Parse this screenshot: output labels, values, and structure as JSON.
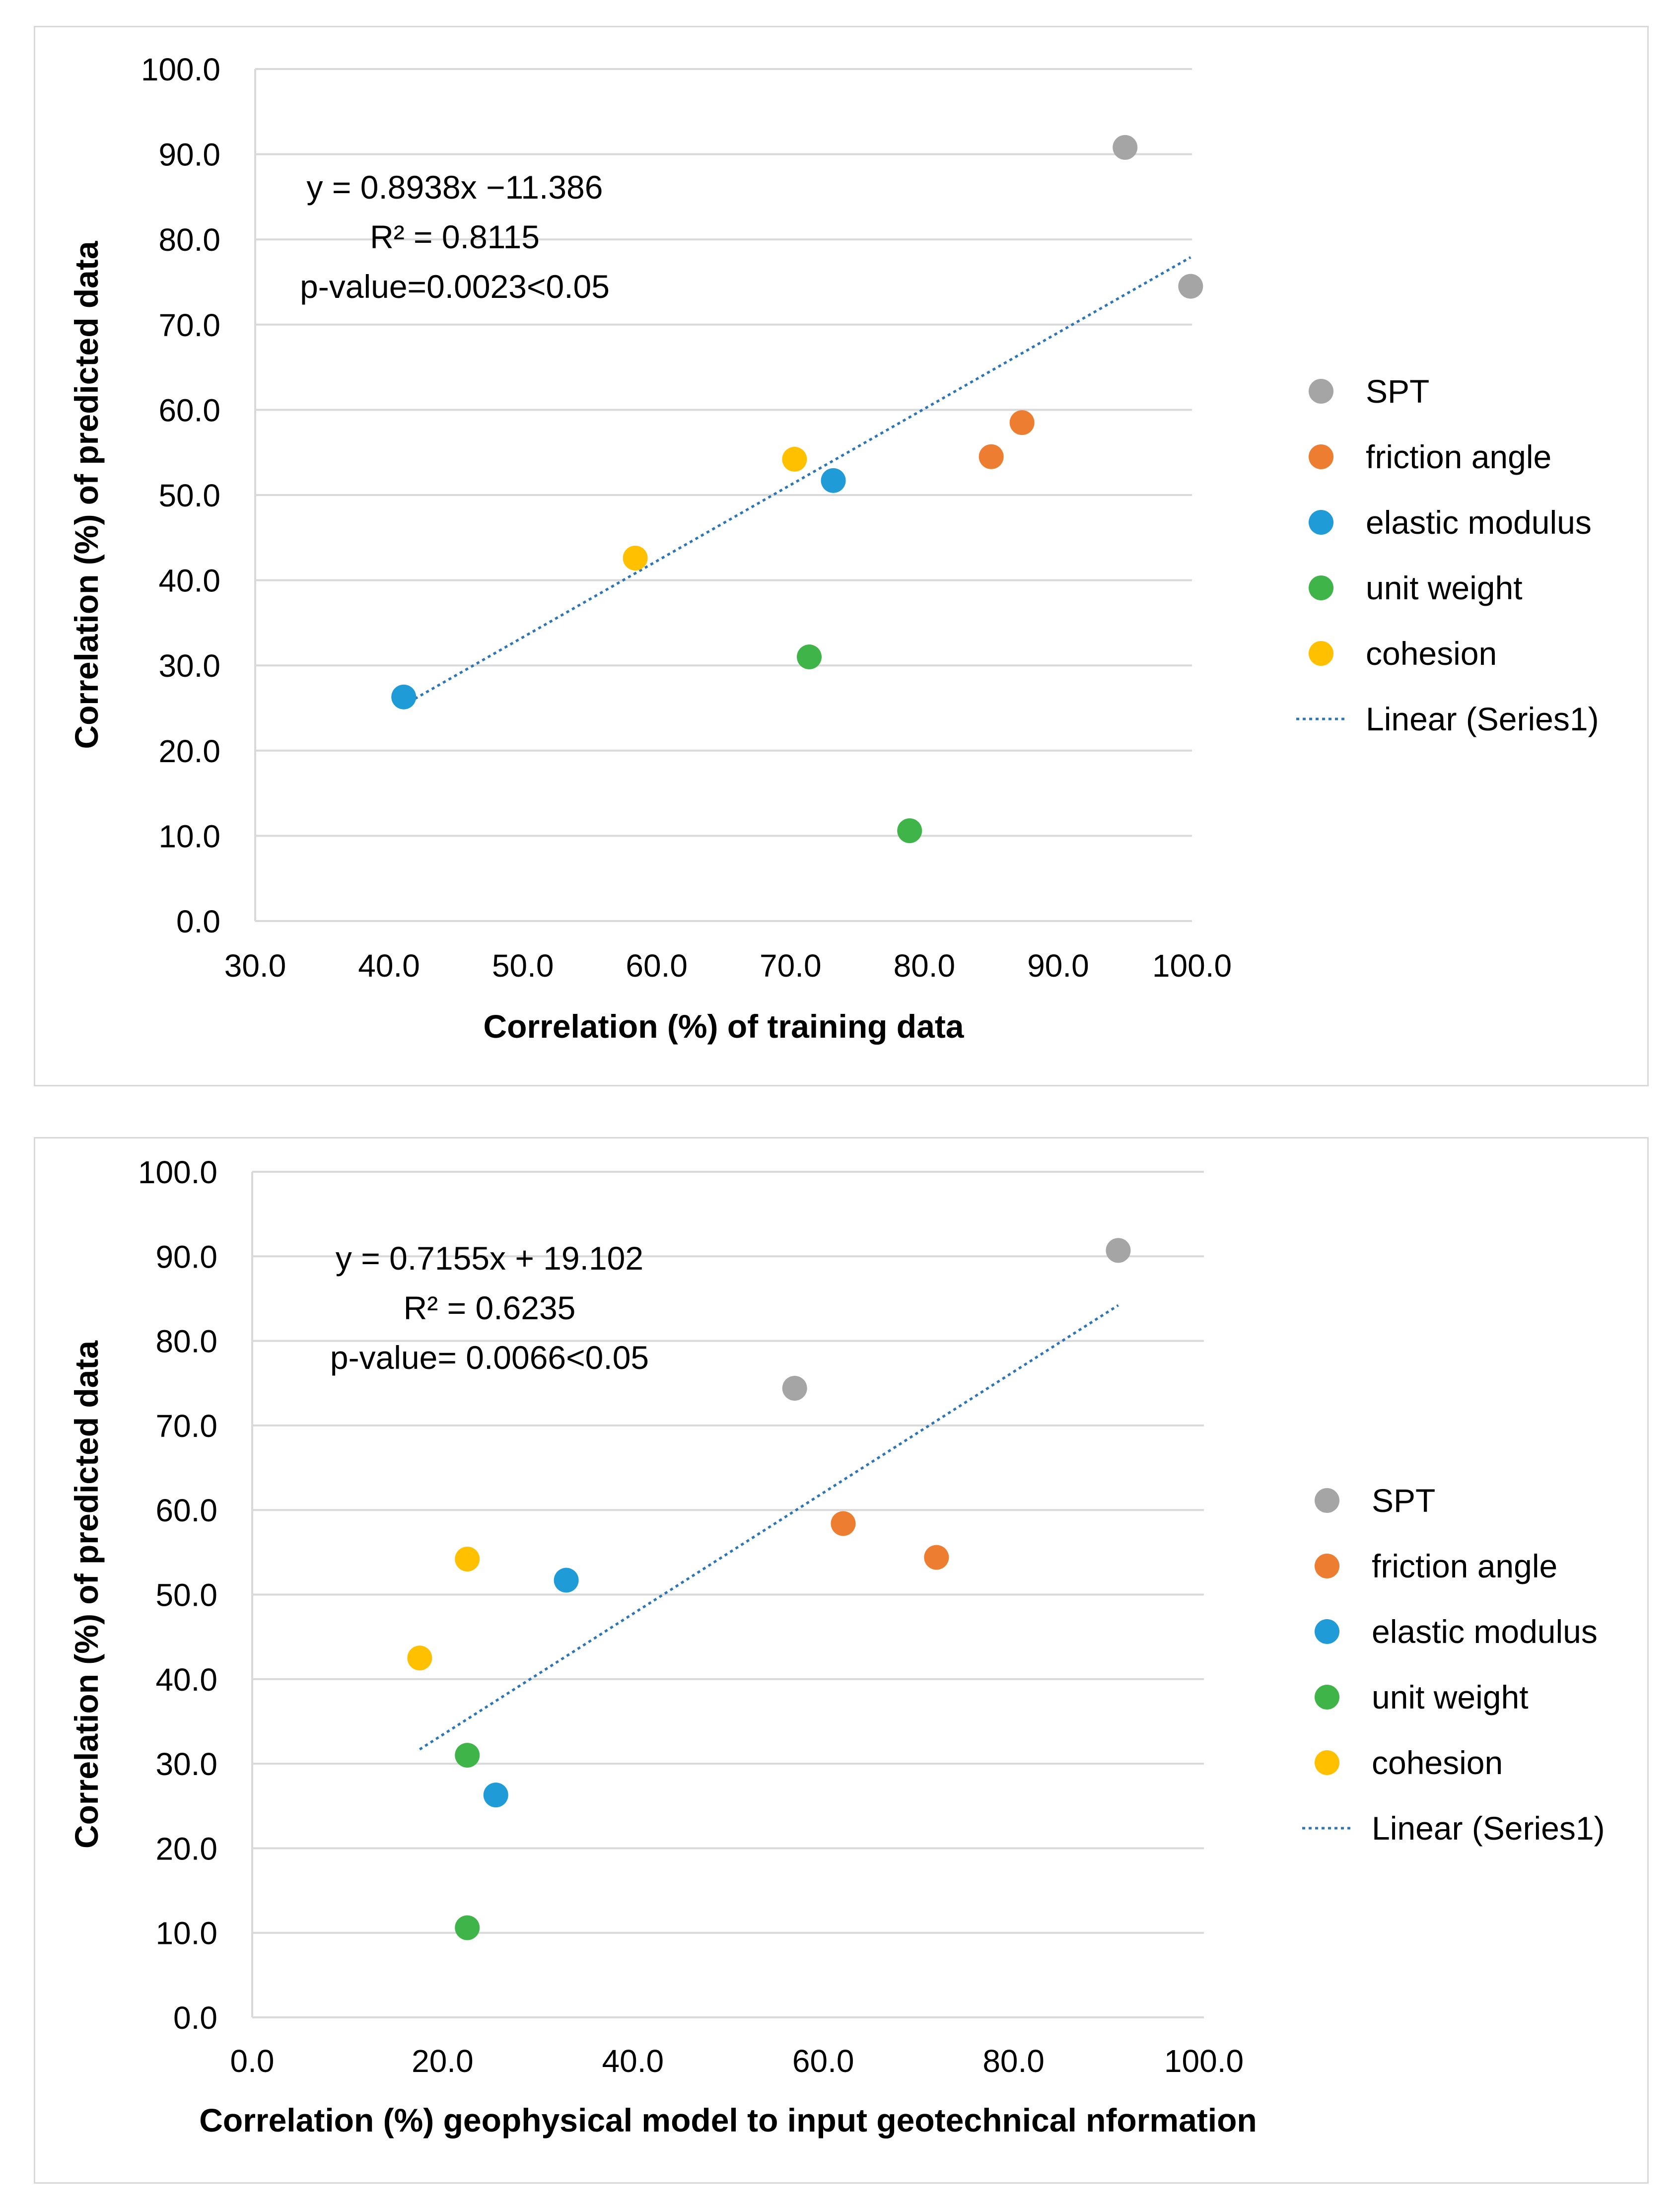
{
  "colors": {
    "SPT": "#a5a5a5",
    "friction_angle": "#ed7d31",
    "elastic_modulus": "#1f9bd7",
    "unit_weight": "#3fb549",
    "cohesion": "#ffc000",
    "trendline": "#2e75b6",
    "gridline": "#d9d9d9",
    "axis_text": "#000000"
  },
  "legend": {
    "items": [
      {
        "key": "SPT",
        "label": "SPT"
      },
      {
        "key": "friction_angle",
        "label": "friction angle"
      },
      {
        "key": "elastic_modulus",
        "label": "elastic modulus"
      },
      {
        "key": "unit_weight",
        "label": "unit weight"
      },
      {
        "key": "cohesion",
        "label": "cohesion"
      },
      {
        "key": "trendline",
        "label": "Linear (Series1)"
      }
    ]
  },
  "chart_data": [
    {
      "type": "scatter",
      "xlabel": "Correlation (%) of training data",
      "ylabel": "Correlation (%) of predicted data",
      "xlim": [
        30,
        100
      ],
      "ylim": [
        0,
        100
      ],
      "x_ticks": [
        "30.0",
        "40.0",
        "50.0",
        "60.0",
        "70.0",
        "80.0",
        "90.0",
        "100.0"
      ],
      "y_ticks": [
        "0.0",
        "10.0",
        "20.0",
        "30.0",
        "40.0",
        "50.0",
        "60.0",
        "70.0",
        "80.0",
        "90.0",
        "100.0"
      ],
      "grid": "horizontal",
      "legend_position": "right",
      "series": [
        {
          "name": "SPT",
          "key": "SPT",
          "points": [
            [
              95.0,
              90.8
            ],
            [
              99.9,
              74.5
            ]
          ]
        },
        {
          "name": "friction angle",
          "key": "friction_angle",
          "points": [
            [
              85.0,
              54.5
            ],
            [
              87.3,
              58.5
            ]
          ]
        },
        {
          "name": "elastic modulus",
          "key": "elastic_modulus",
          "points": [
            [
              41.1,
              26.3
            ],
            [
              73.2,
              51.7
            ]
          ]
        },
        {
          "name": "unit weight",
          "key": "unit_weight",
          "points": [
            [
              71.4,
              31.0
            ],
            [
              78.9,
              10.6
            ]
          ]
        },
        {
          "name": "cohesion",
          "key": "cohesion",
          "points": [
            [
              58.4,
              42.6
            ],
            [
              70.3,
              54.2
            ]
          ]
        }
      ],
      "trendline": {
        "name": "Linear (Series1)",
        "slope": 0.8938,
        "intercept": -11.386,
        "x_range": [
          41.1,
          99.9
        ]
      },
      "annotation": [
        "y = 0.8938x −11.386",
        "R² = 0.8115",
        "p-value=0.0023<0.05"
      ]
    },
    {
      "type": "scatter",
      "xlabel": "Correlation (%) geophysical model to input geotechnical nformation",
      "ylabel": "Correlation (%) of predicted data",
      "xlim": [
        0,
        100
      ],
      "ylim": [
        0,
        100
      ],
      "x_ticks": [
        "0.0",
        "20.0",
        "40.0",
        "60.0",
        "80.0",
        "100.0"
      ],
      "y_ticks": [
        "0.0",
        "10.0",
        "20.0",
        "30.0",
        "40.0",
        "50.0",
        "60.0",
        "70.0",
        "80.0",
        "90.0",
        "100.0"
      ],
      "grid": "horizontal",
      "legend_position": "right",
      "series": [
        {
          "name": "SPT",
          "key": "SPT",
          "points": [
            [
              91.0,
              90.7
            ],
            [
              57.0,
              74.4
            ]
          ]
        },
        {
          "name": "friction angle",
          "key": "friction_angle",
          "points": [
            [
              62.1,
              58.4
            ],
            [
              71.9,
              54.4
            ]
          ]
        },
        {
          "name": "elastic modulus",
          "key": "elastic_modulus",
          "points": [
            [
              33.0,
              51.7
            ],
            [
              25.6,
              26.3
            ]
          ]
        },
        {
          "name": "unit weight",
          "key": "unit_weight",
          "points": [
            [
              22.6,
              31.0
            ],
            [
              22.6,
              10.6
            ]
          ]
        },
        {
          "name": "cohesion",
          "key": "cohesion",
          "points": [
            [
              22.6,
              54.2
            ],
            [
              17.6,
              42.5
            ]
          ]
        }
      ],
      "trendline": {
        "name": "Linear (Series1)",
        "slope": 0.7155,
        "intercept": 19.102,
        "x_range": [
          17.6,
          91.0
        ]
      },
      "annotation": [
        "y = 0.7155x + 19.102",
        "R² = 0.6235",
        "p-value= 0.0066<0.05"
      ]
    }
  ]
}
